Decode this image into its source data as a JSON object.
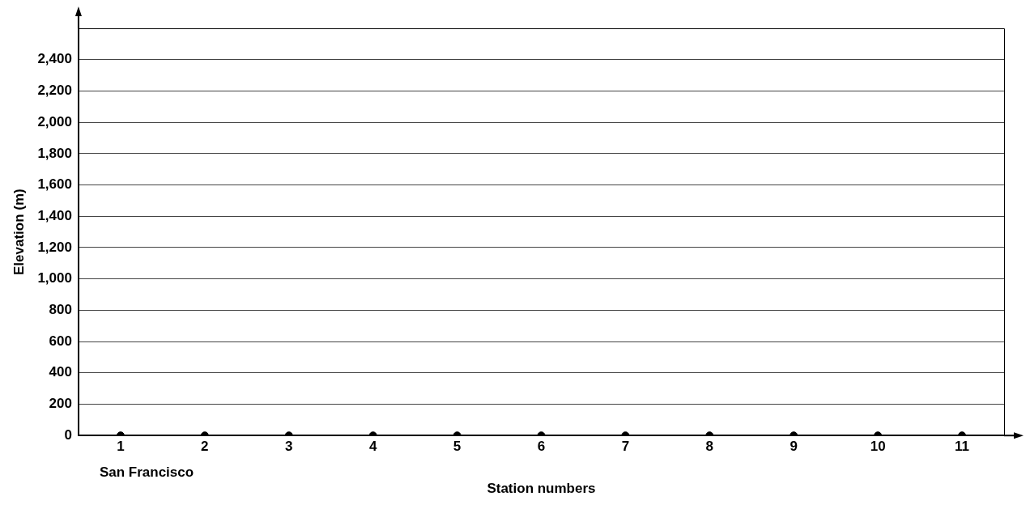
{
  "chart_data": {
    "type": "scatter",
    "xlabel": "Station numbers",
    "ylabel": "Elevation (m)",
    "categories": [
      "1",
      "2",
      "3",
      "4",
      "5",
      "6",
      "7",
      "8",
      "9",
      "10",
      "11"
    ],
    "series": [
      {
        "color": "#000000",
        "values": [
          0,
          0,
          0,
          0,
          0,
          0,
          0,
          0,
          0,
          0,
          0
        ]
      }
    ],
    "ylim": [
      0,
      2600
    ],
    "yticks": [
      0,
      200,
      400,
      600,
      800,
      {
        "value": 1000,
        "label": "1,000"
      },
      {
        "value": 1200,
        "label": "1,200"
      },
      {
        "value": 1400,
        "label": "1,400"
      },
      {
        "value": 1600,
        "label": "1,600"
      },
      {
        "value": 1800,
        "label": "1,800"
      },
      {
        "value": 2000,
        "label": "2,000"
      },
      {
        "value": 2200,
        "label": "2,200"
      },
      {
        "value": 2400,
        "label": "2,400"
      }
    ],
    "annotations": [
      {
        "text": "San Francisco",
        "x": "1",
        "y": 0
      }
    ],
    "grid": "y",
    "marker": "circle",
    "legend": false
  }
}
